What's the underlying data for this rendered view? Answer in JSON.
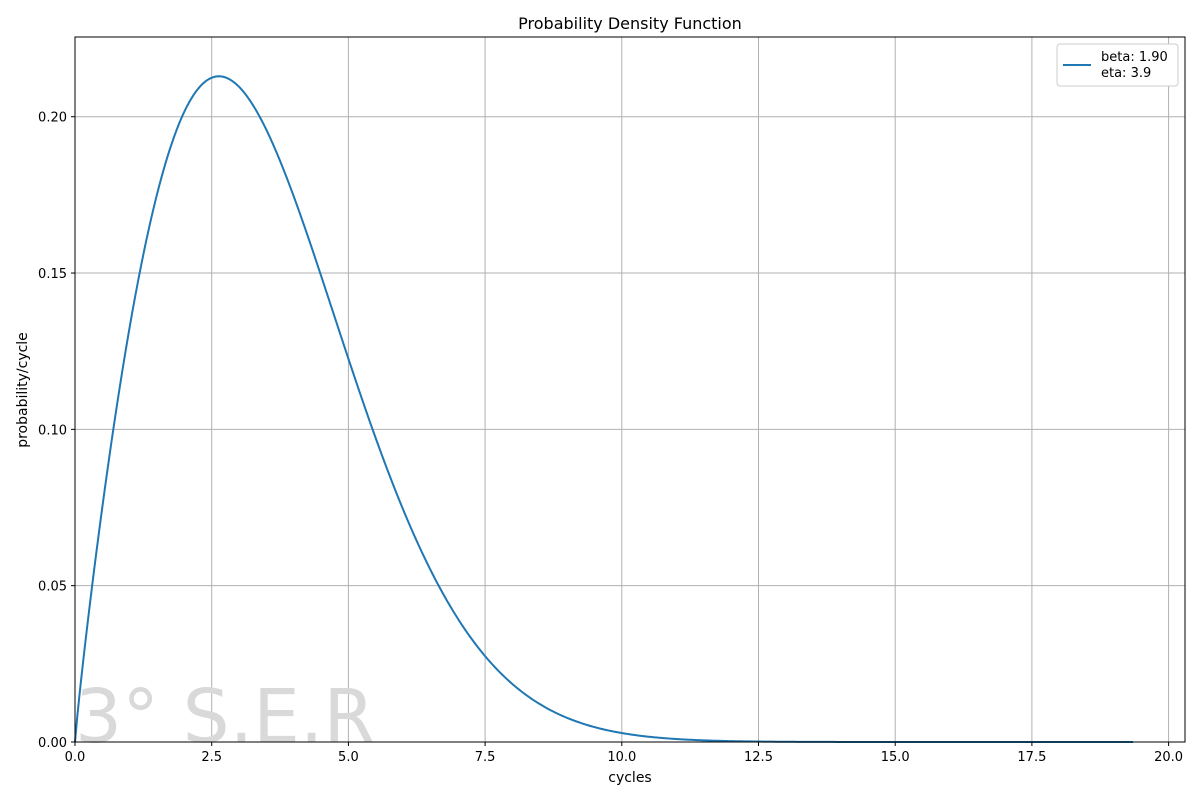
{
  "chart_data": {
    "type": "line",
    "title": "Probability Density Function",
    "xlabel": "cycles",
    "ylabel": "probability/cycle",
    "xlim": [
      0,
      20.3
    ],
    "ylim": [
      0,
      0.2255
    ],
    "xticks": [
      0,
      2.5,
      5,
      7.5,
      10,
      12.5,
      15,
      17.5,
      20
    ],
    "xtick_labels": [
      "0.0",
      "2.5",
      "5.0",
      "7.5",
      "10.0",
      "12.5",
      "15.0",
      "17.5",
      "20.0"
    ],
    "yticks": [
      0,
      0.05,
      0.1,
      0.15,
      0.2
    ],
    "ytick_labels": [
      "0.00",
      "0.05",
      "0.10",
      "0.15",
      "0.20"
    ],
    "grid": true,
    "legend_position": "top-right",
    "series": [
      {
        "name": "beta: 1.90\neta: 3.9",
        "legend_lines": [
          "beta: 1.90",
          "eta: 3.9"
        ],
        "color": "#1f77b4",
        "distribution": "weibull",
        "beta": 1.9,
        "eta": 3.9,
        "x_range": [
          0,
          19.35
        ]
      }
    ],
    "watermark": "3° S.E.R"
  }
}
